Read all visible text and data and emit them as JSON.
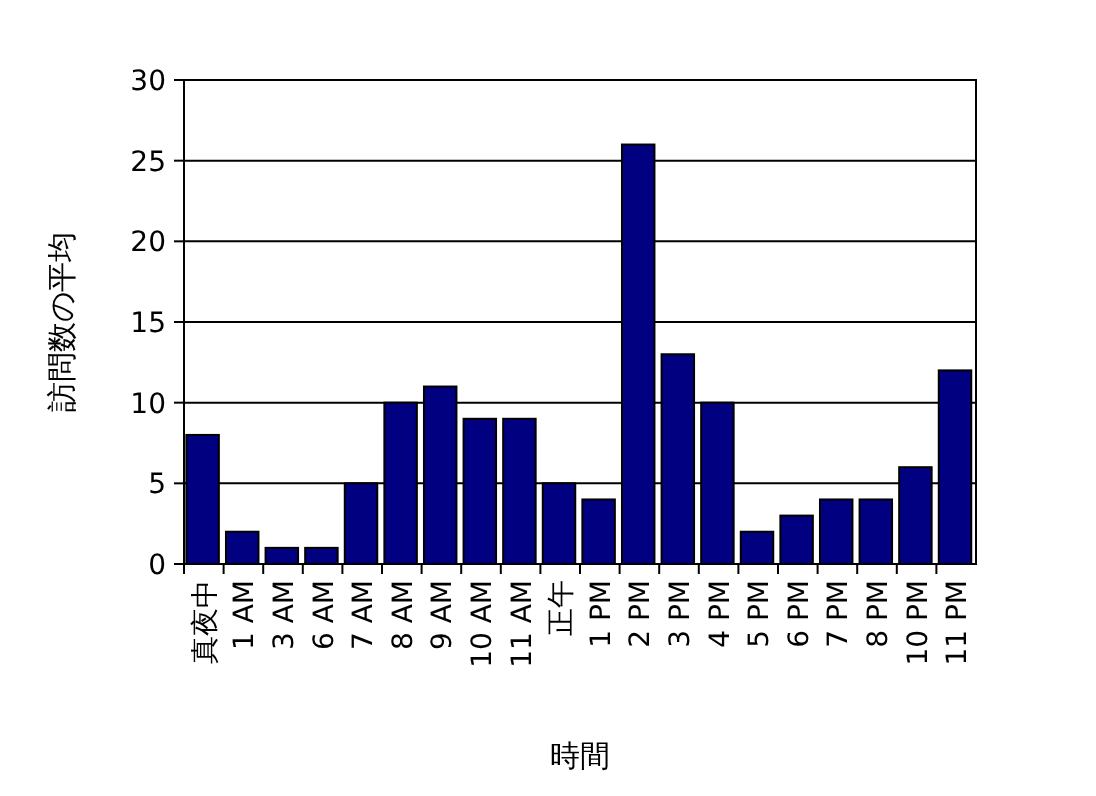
{
  "chart_data": {
    "type": "bar",
    "xlabel": "時間",
    "ylabel": "訪問数の平均",
    "categories": [
      "真夜中",
      "1 AM",
      "3 AM",
      "6 AM",
      "7 AM",
      "8 AM",
      "9 AM",
      "10 AM",
      "11 AM",
      "正午",
      "1 PM",
      "2 PM",
      "3 PM",
      "4 PM",
      "5 PM",
      "6 PM",
      "7 PM",
      "8 PM",
      "10 PM",
      "11 PM"
    ],
    "values": [
      8,
      2,
      1,
      1,
      5,
      10,
      11,
      9,
      9,
      5,
      4,
      26,
      13,
      10,
      2,
      3,
      4,
      4,
      6,
      12
    ],
    "color": "#000080",
    "ylim": [
      0,
      30
    ],
    "yticks": [
      0,
      5,
      10,
      15,
      20,
      25,
      30
    ],
    "grid": "y"
  }
}
